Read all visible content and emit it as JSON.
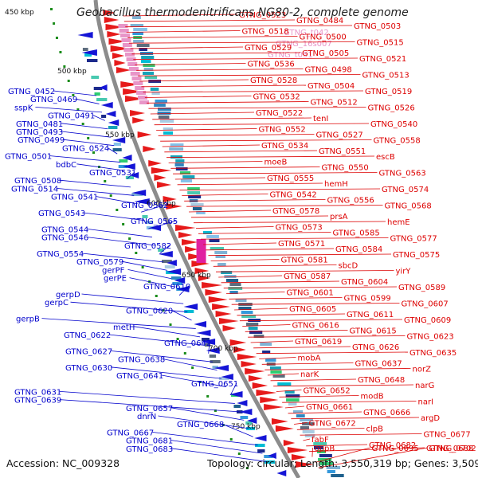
{
  "title": "Geobacillus thermodenitrificans NG80-2, complete genome",
  "footer": {
    "accession": "Accession: NC_009328",
    "summary": "Topology: circular; Length: 3,550,319 bp; Genes: 3,509"
  },
  "colors": {
    "background": "#ffffff",
    "backbone": "#8c8c8c",
    "reverse_strand": "#1515d6",
    "forward_strand": "#e61a1a",
    "rna": "#e895c8",
    "tick": "#1a8c1a",
    "cds_blue": "#0000cc",
    "cds_red": "#dd0000"
  },
  "kbp_ticks": [
    "450 kbp",
    "500 kbp",
    "550 kbp",
    "600 kbp",
    "650 kbp",
    "700 kbp",
    "750 kbp"
  ],
  "left_labels": [
    "GTNG_0452",
    "GTNG_0469",
    "sspK",
    "GTNG_0491",
    "GTNG_0481",
    "GTNG_0493",
    "GTNG_0499",
    "GTNG_0524",
    "GTNG_0501",
    "bdbC",
    "GTNG_0531",
    "GTNG_0508",
    "GTNG_0514",
    "GTNG_0541",
    "GTNG_0562",
    "GTNG_0543",
    "GTNG_0565",
    "GTNG_0544",
    "GTNG_0546",
    "GTNG_0582",
    "GTNG_0554",
    "GTNG_0579",
    "gerPF",
    "gerPE",
    "GTNG_0610",
    "gerpD",
    "gerpC",
    "GTNG_0620",
    "gerpB",
    "metH",
    "GTNG_0622",
    "GTNG_0642",
    "GTNG_0627",
    "GTNG_0638",
    "GTNG_0630",
    "GTNG_0641",
    "GTNG_0651",
    "GTNG_0631",
    "GTNG_0639",
    "GTNG_0657",
    "dnrN",
    "GTNG_0668",
    "GTNG_0667",
    "GTNG_0681",
    "GTNG_0683"
  ],
  "rna_labels": [
    "GTNG_t042",
    "GTNG_16s007",
    "GTNG_t051"
  ],
  "right_labels": [
    "GTNG_0523",
    "GTNG_0484",
    "GTNG_0503",
    "GTNG_0518",
    "GTNG_0500",
    "GTNG_0515",
    "GTNG_0529",
    "GTNG_0505",
    "GTNG_0521",
    "GTNG_0536",
    "GTNG_0498",
    "GTNG_0513",
    "GTNG_0528",
    "GTNG_0504",
    "GTNG_0519",
    "GTNG_0532",
    "GTNG_0512",
    "GTNG_0526",
    "GTNG_0522",
    "tenI",
    "GTNG_0540",
    "GTNG_0552",
    "GTNG_0527",
    "GTNG_0558",
    "GTNG_0534",
    "GTNG_0551",
    "escB",
    "moeB",
    "GTNG_0550",
    "GTNG_0563",
    "GTNG_0555",
    "hemH",
    "GTNG_0574",
    "GTNG_0542",
    "GTNG_0556",
    "GTNG_0568",
    "GTNG_0578",
    "prsA",
    "hemE",
    "GTNG_0573",
    "GTNG_0585",
    "GTNG_0577",
    "GTNG_0571",
    "GTNG_0584",
    "GTNG_0575",
    "GTNG_0581",
    "sbcD",
    "yirY",
    "GTNG_0587",
    "GTNG_0604",
    "GTNG_0589",
    "GTNG_0601",
    "GTNG_0599",
    "GTNG_0607",
    "GTNG_0605",
    "GTNG_0611",
    "GTNG_0609",
    "GTNG_0616",
    "GTNG_0615",
    "GTNG_0623",
    "GTNG_0619",
    "GTNG_0626",
    "GTNG_0635",
    "mobA",
    "GTNG_0637",
    "norZ",
    "narK",
    "GTNG_0648",
    "narG",
    "GTNG_0652",
    "modB",
    "narI",
    "GTNG_0661",
    "GTNG_0666",
    "argD",
    "GTNG_0672",
    "clpB",
    "GTNG_0677",
    "fabF",
    "GTNG_0682",
    "GTNG_0688",
    "oppB",
    "GTNG_0695",
    "GTNG_0702"
  ]
}
